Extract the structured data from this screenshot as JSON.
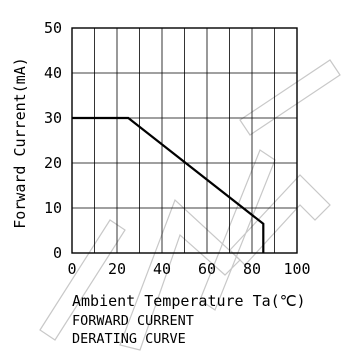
{
  "chart_data": {
    "type": "line",
    "title": "FORWARD CURRENT DERATING CURVE",
    "title_lines": [
      "FORWARD CURRENT",
      "DERATING CURVE"
    ],
    "xlabel": "Ambient Temperature Ta(℃)",
    "ylabel": "Forward Current(mA)",
    "xlim": [
      0,
      100
    ],
    "ylim": [
      0,
      50
    ],
    "x_ticks": [
      0,
      20,
      40,
      60,
      80,
      100
    ],
    "y_ticks": [
      0,
      10,
      20,
      30,
      40,
      50
    ],
    "grid_step": {
      "x": 10,
      "y": 10
    },
    "grid": true,
    "series": [
      {
        "x": [
          0,
          25,
          85,
          85
        ],
        "y": [
          30,
          30,
          6.5,
          0
        ]
      }
    ],
    "watermark": "WDEA",
    "colors": {
      "line": "#000000",
      "grid": "#000000",
      "watermark": "#c8c8c8"
    }
  }
}
